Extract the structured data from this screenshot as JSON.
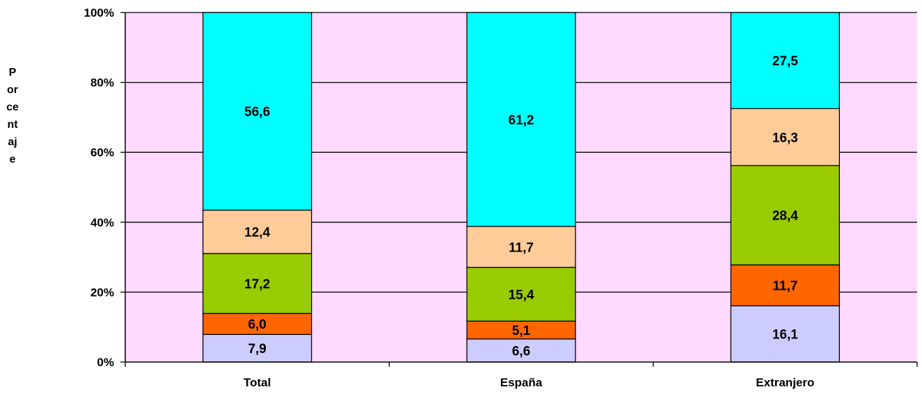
{
  "chart_data": {
    "type": "bar",
    "stacked": true,
    "percent_stacked": true,
    "categories": [
      "Total",
      "España",
      "Extranjero"
    ],
    "series": [
      {
        "color": "#CCCCFF",
        "values": [
          7.9,
          6.6,
          16.1
        ]
      },
      {
        "color": "#FF6600",
        "values": [
          6.0,
          5.1,
          11.7
        ]
      },
      {
        "color": "#99CC00",
        "values": [
          17.2,
          15.4,
          28.4
        ]
      },
      {
        "color": "#FFCC99",
        "values": [
          12.4,
          11.7,
          16.3
        ]
      },
      {
        "color": "#00FFFF",
        "values": [
          56.6,
          61.2,
          27.5
        ]
      }
    ],
    "data_labels": [
      [
        "7,9",
        "6,0",
        "17,2",
        "12,4",
        "56,6"
      ],
      [
        "6,6",
        "5,1",
        "15,4",
        "11,7",
        "61,2"
      ],
      [
        "16,1",
        "11,7",
        "28,4",
        "16,3",
        "27,5"
      ]
    ],
    "ylabel": "Porcentaje",
    "xlabel": "",
    "yticks": [
      "0%",
      "20%",
      "40%",
      "60%",
      "80%",
      "100%"
    ],
    "ylim": [
      0,
      100
    ],
    "plot_background": "#FFD9FF",
    "grid": true,
    "legend": "none"
  }
}
